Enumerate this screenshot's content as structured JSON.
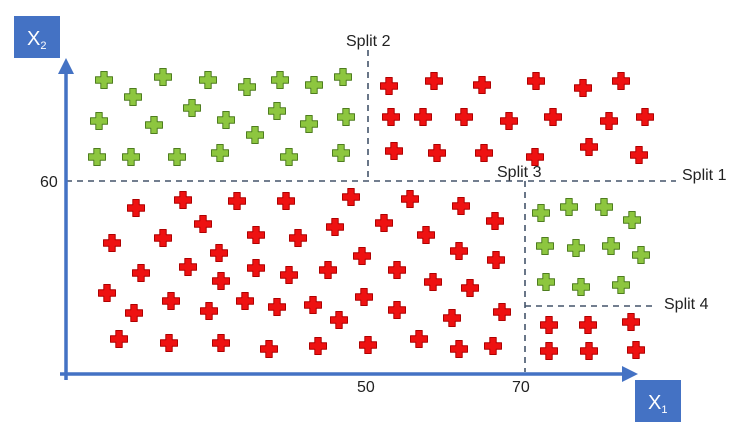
{
  "axes": {
    "x_label_main": "X",
    "x_label_sub": "1",
    "y_label_main": "X",
    "y_label_sub": "2",
    "x_ticks": [
      "50",
      "70"
    ],
    "y_ticks": [
      "60"
    ],
    "axis_color": "#4472C4"
  },
  "splits": [
    {
      "label": "Split 1",
      "axis": "x2",
      "value": 60
    },
    {
      "label": "Split 2",
      "axis": "x1",
      "value": 50
    },
    {
      "label": "Split 3",
      "axis": "x1",
      "value": 70
    },
    {
      "label": "Split 4",
      "axis": "x2",
      "value": 30
    }
  ],
  "colors": {
    "green_fill": "#8DC63F",
    "green_stroke": "#4E7D1F",
    "red_fill": "#EE1111",
    "red_stroke": "#B00000",
    "split_line": "#44546A"
  },
  "points": {
    "green": [
      [
        104,
        80
      ],
      [
        163,
        77
      ],
      [
        208,
        80
      ],
      [
        247,
        87
      ],
      [
        280,
        80
      ],
      [
        314,
        85
      ],
      [
        343,
        77
      ],
      [
        133,
        97
      ],
      [
        192,
        108
      ],
      [
        277,
        111
      ],
      [
        99,
        121
      ],
      [
        154,
        125
      ],
      [
        226,
        120
      ],
      [
        255,
        135
      ],
      [
        309,
        124
      ],
      [
        346,
        117
      ],
      [
        97,
        157
      ],
      [
        131,
        157
      ],
      [
        177,
        157
      ],
      [
        220,
        153
      ],
      [
        289,
        157
      ],
      [
        341,
        153
      ],
      [
        541,
        213
      ],
      [
        569,
        207
      ],
      [
        604,
        207
      ],
      [
        632,
        220
      ],
      [
        545,
        246
      ],
      [
        576,
        248
      ],
      [
        611,
        246
      ],
      [
        641,
        255
      ],
      [
        546,
        282
      ],
      [
        581,
        287
      ],
      [
        621,
        285
      ]
    ],
    "red": [
      [
        389,
        86
      ],
      [
        434,
        81
      ],
      [
        482,
        85
      ],
      [
        536,
        81
      ],
      [
        583,
        88
      ],
      [
        621,
        81
      ],
      [
        391,
        117
      ],
      [
        423,
        117
      ],
      [
        464,
        117
      ],
      [
        509,
        121
      ],
      [
        553,
        117
      ],
      [
        609,
        121
      ],
      [
        645,
        117
      ],
      [
        394,
        151
      ],
      [
        437,
        153
      ],
      [
        484,
        153
      ],
      [
        535,
        157
      ],
      [
        589,
        147
      ],
      [
        639,
        155
      ],
      [
        136,
        208
      ],
      [
        183,
        200
      ],
      [
        237,
        201
      ],
      [
        286,
        201
      ],
      [
        351,
        197
      ],
      [
        410,
        199
      ],
      [
        461,
        206
      ],
      [
        495,
        221
      ],
      [
        203,
        224
      ],
      [
        256,
        235
      ],
      [
        335,
        227
      ],
      [
        384,
        223
      ],
      [
        112,
        243
      ],
      [
        163,
        238
      ],
      [
        219,
        253
      ],
      [
        298,
        238
      ],
      [
        426,
        235
      ],
      [
        362,
        256
      ],
      [
        459,
        251
      ],
      [
        496,
        260
      ],
      [
        188,
        267
      ],
      [
        141,
        273
      ],
      [
        256,
        268
      ],
      [
        289,
        275
      ],
      [
        328,
        270
      ],
      [
        397,
        270
      ],
      [
        433,
        282
      ],
      [
        470,
        288
      ],
      [
        221,
        281
      ],
      [
        107,
        293
      ],
      [
        171,
        301
      ],
      [
        245,
        301
      ],
      [
        277,
        307
      ],
      [
        313,
        305
      ],
      [
        364,
        297
      ],
      [
        397,
        310
      ],
      [
        134,
        313
      ],
      [
        209,
        311
      ],
      [
        452,
        318
      ],
      [
        502,
        312
      ],
      [
        339,
        320
      ],
      [
        119,
        339
      ],
      [
        169,
        343
      ],
      [
        221,
        343
      ],
      [
        269,
        349
      ],
      [
        318,
        346
      ],
      [
        368,
        345
      ],
      [
        419,
        339
      ],
      [
        459,
        349
      ],
      [
        493,
        346
      ],
      [
        549,
        325
      ],
      [
        588,
        325
      ],
      [
        631,
        322
      ],
      [
        549,
        351
      ],
      [
        589,
        351
      ],
      [
        636,
        350
      ]
    ]
  }
}
